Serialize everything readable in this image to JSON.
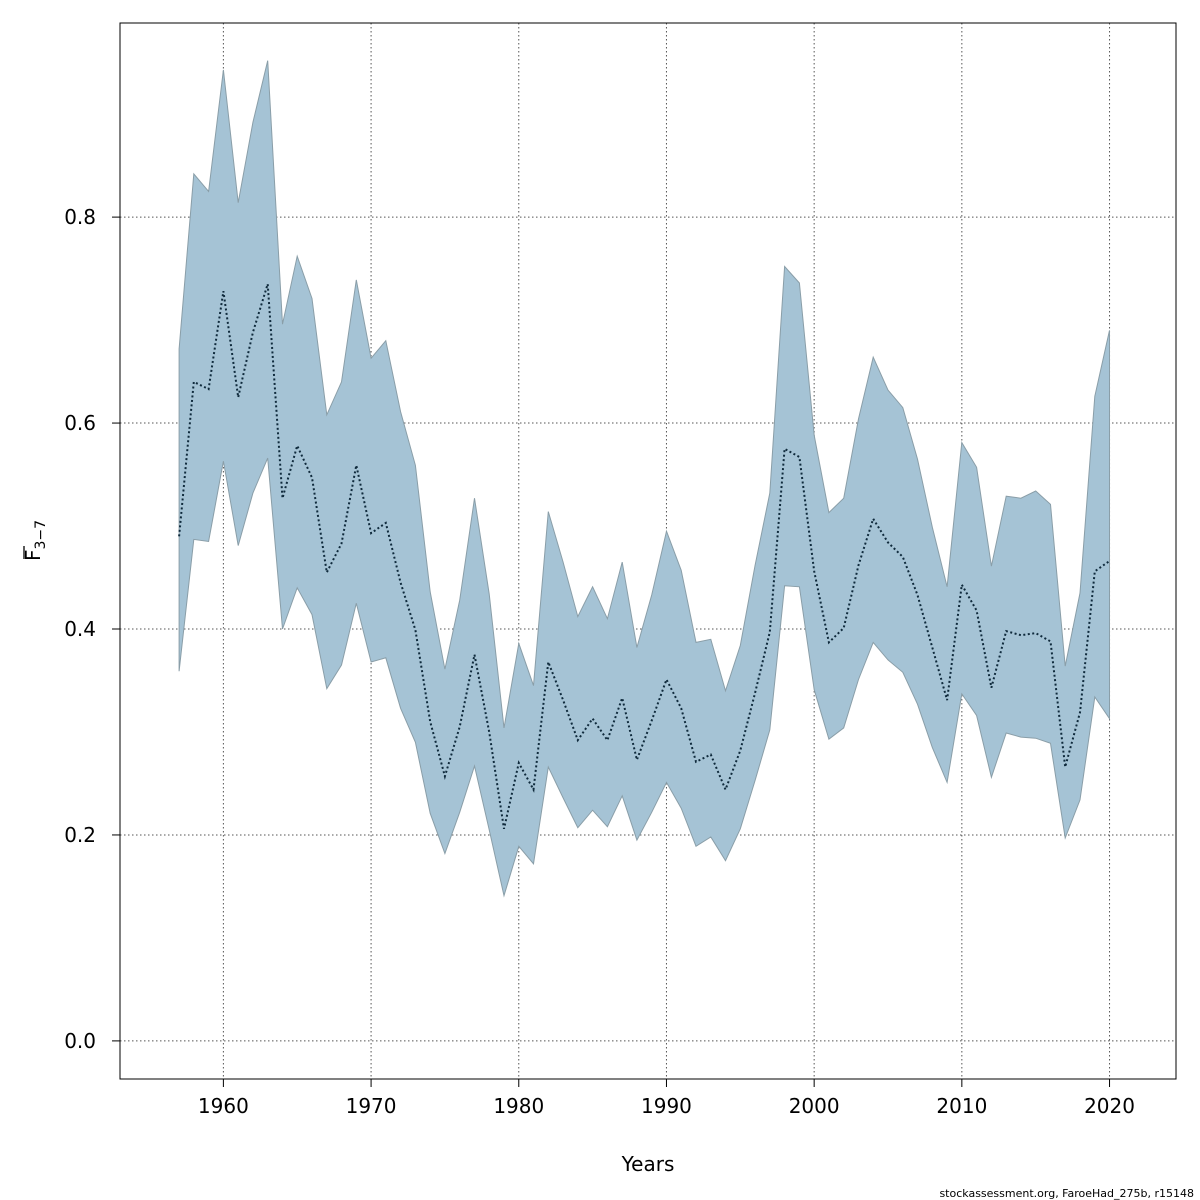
{
  "chart_data": {
    "type": "line",
    "title": "",
    "xlabel": "Years",
    "ylabel": "F",
    "ylabel_subscript": "3−7",
    "xlim": [
      1953,
      2024.5
    ],
    "ylim": [
      -0.037,
      0.9885
    ],
    "xticks": [
      1960,
      1970,
      1980,
      1990,
      2000,
      2010,
      2020
    ],
    "yticks": [
      0.0,
      0.2,
      0.4,
      0.6,
      0.8
    ],
    "ytick_labels": [
      "0.0",
      "0.2",
      "0.4",
      "0.6",
      "0.8"
    ],
    "grid": true,
    "colors": {
      "band": "#a5c3d5",
      "band_edge": "#8a9ea8",
      "line": "#0f2a3c",
      "grid": "#555555"
    },
    "x": [
      1957,
      1958,
      1959,
      1960,
      1961,
      1962,
      1963,
      1964,
      1965,
      1966,
      1967,
      1968,
      1969,
      1970,
      1971,
      1972,
      1973,
      1974,
      1975,
      1976,
      1977,
      1978,
      1979,
      1980,
      1981,
      1982,
      1983,
      1984,
      1985,
      1986,
      1987,
      1988,
      1989,
      1990,
      1991,
      1992,
      1993,
      1994,
      1995,
      1996,
      1997,
      1998,
      1999,
      2000,
      2001,
      2002,
      2003,
      2004,
      2005,
      2006,
      2007,
      2008,
      2009,
      2010,
      2011,
      2012,
      2013,
      2014,
      2015,
      2016,
      2017,
      2018,
      2019,
      2020
    ],
    "series": [
      {
        "role": "estimate",
        "values": [
          0.49,
          0.64,
          0.633,
          0.728,
          0.625,
          0.688,
          0.735,
          0.527,
          0.578,
          0.547,
          0.455,
          0.483,
          0.559,
          0.493,
          0.503,
          0.445,
          0.399,
          0.31,
          0.257,
          0.305,
          0.375,
          0.3,
          0.206,
          0.27,
          0.244,
          0.368,
          0.331,
          0.292,
          0.313,
          0.292,
          0.333,
          0.273,
          0.311,
          0.351,
          0.323,
          0.271,
          0.278,
          0.244,
          0.282,
          0.338,
          0.397,
          0.575,
          0.567,
          0.456,
          0.387,
          0.401,
          0.462,
          0.507,
          0.484,
          0.47,
          0.433,
          0.382,
          0.331,
          0.443,
          0.418,
          0.343,
          0.398,
          0.394,
          0.396,
          0.388,
          0.266,
          0.319,
          0.456,
          0.466
        ]
      },
      {
        "role": "upper",
        "values": [
          0.672,
          0.842,
          0.825,
          0.943,
          0.814,
          0.892,
          0.952,
          0.696,
          0.762,
          0.721,
          0.608,
          0.64,
          0.739,
          0.663,
          0.68,
          0.611,
          0.559,
          0.436,
          0.361,
          0.428,
          0.527,
          0.434,
          0.304,
          0.386,
          0.345,
          0.514,
          0.465,
          0.412,
          0.441,
          0.41,
          0.465,
          0.382,
          0.433,
          0.495,
          0.457,
          0.387,
          0.39,
          0.34,
          0.384,
          0.462,
          0.532,
          0.752,
          0.736,
          0.588,
          0.513,
          0.527,
          0.604,
          0.664,
          0.632,
          0.615,
          0.565,
          0.499,
          0.441,
          0.581,
          0.557,
          0.461,
          0.529,
          0.527,
          0.534,
          0.521,
          0.364,
          0.435,
          0.626,
          0.69
        ]
      },
      {
        "role": "lower",
        "values": [
          0.359,
          0.487,
          0.485,
          0.563,
          0.481,
          0.532,
          0.566,
          0.4,
          0.44,
          0.414,
          0.342,
          0.365,
          0.425,
          0.368,
          0.372,
          0.323,
          0.29,
          0.221,
          0.182,
          0.222,
          0.267,
          0.205,
          0.141,
          0.189,
          0.172,
          0.266,
          0.236,
          0.207,
          0.224,
          0.208,
          0.238,
          0.195,
          0.222,
          0.251,
          0.226,
          0.189,
          0.198,
          0.175,
          0.206,
          0.253,
          0.302,
          0.442,
          0.441,
          0.341,
          0.293,
          0.304,
          0.351,
          0.387,
          0.37,
          0.358,
          0.327,
          0.285,
          0.251,
          0.337,
          0.316,
          0.256,
          0.299,
          0.295,
          0.294,
          0.289,
          0.197,
          0.234,
          0.334,
          0.313
        ]
      }
    ]
  },
  "credit": "stockassessment.org, FaroeHad_275b, r15148"
}
